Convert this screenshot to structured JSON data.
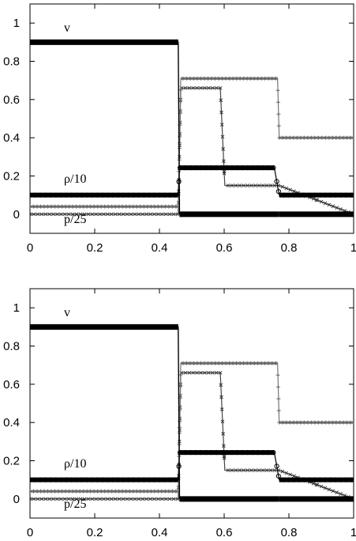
{
  "chart_data": [
    {
      "type": "line",
      "title": "",
      "xlabel": "",
      "ylabel": "",
      "xlim": [
        0,
        1
      ],
      "ylim": [
        -0.1,
        1.1
      ],
      "xticks": [
        "0",
        "0.2",
        "0.4",
        "0.6",
        "0.8",
        "1"
      ],
      "yticks": [
        "0",
        "0.2",
        "0.4",
        "0.6",
        "0.8",
        "1"
      ],
      "grid": false,
      "series": [
        {
          "name": "v",
          "marker": "dots",
          "x": [
            0,
            0.458,
            0.462,
            0.766,
            0.77,
            1
          ],
          "y": [
            0.9,
            0.9,
            0,
            0,
            0,
            0
          ]
        },
        {
          "name": "ρ/10",
          "marker": "circles",
          "x": [
            0,
            0.458,
            0.462,
            0.755,
            0.77,
            1
          ],
          "y": [
            0.1,
            0.1,
            0.243,
            0.243,
            0.1,
            0.1
          ]
        },
        {
          "name": "p/25",
          "marker": "plus",
          "x": [
            0,
            0.458,
            0.466,
            0.765,
            0.77,
            1
          ],
          "y": [
            0.04,
            0.04,
            0.71,
            0.71,
            0.4,
            0.4
          ]
        },
        {
          "name": "",
          "marker": "cross",
          "x": [
            0,
            0.458,
            0.466,
            0.588,
            0.602,
            0.77,
            1
          ],
          "y": [
            0,
            0,
            0.66,
            0.66,
            0.15,
            0.15,
            0
          ]
        }
      ]
    },
    {
      "type": "line",
      "title": "",
      "xlabel": "",
      "ylabel": "",
      "xlim": [
        0,
        1
      ],
      "ylim": [
        -0.1,
        1.1
      ],
      "xticks": [
        "0",
        "0.2",
        "0.4",
        "0.6",
        "0.8",
        "1"
      ],
      "yticks": [
        "0",
        "0.2",
        "0.4",
        "0.6",
        "0.8",
        "1"
      ],
      "grid": false,
      "series": [
        {
          "name": "v",
          "marker": "dots",
          "x": [
            0,
            0.458,
            0.462,
            0.766,
            0.77,
            1
          ],
          "y": [
            0.9,
            0.9,
            0,
            0,
            0,
            0
          ]
        },
        {
          "name": "ρ/10",
          "marker": "circles",
          "x": [
            0,
            0.458,
            0.462,
            0.755,
            0.77,
            1
          ],
          "y": [
            0.1,
            0.1,
            0.243,
            0.243,
            0.1,
            0.1
          ]
        },
        {
          "name": "p/25",
          "marker": "plus",
          "x": [
            0,
            0.458,
            0.466,
            0.765,
            0.77,
            1
          ],
          "y": [
            0.04,
            0.04,
            0.71,
            0.71,
            0.4,
            0.4
          ]
        },
        {
          "name": "",
          "marker": "cross",
          "x": [
            0,
            0.458,
            0.466,
            0.588,
            0.602,
            0.77,
            1
          ],
          "y": [
            0,
            0,
            0.66,
            0.66,
            0.15,
            0.15,
            0
          ]
        }
      ]
    }
  ]
}
